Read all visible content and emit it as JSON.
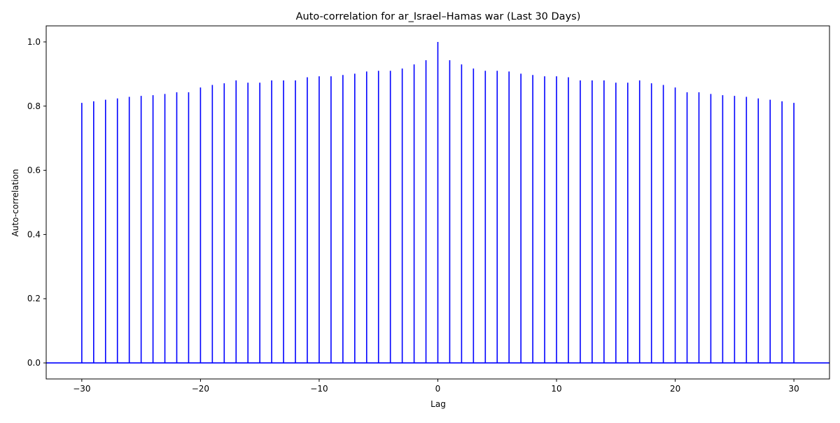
{
  "chart_data": {
    "type": "stem",
    "title": "Auto-correlation for ar_Israel–Hamas war (Last 30 Days)",
    "xlabel": "Lag",
    "ylabel": "Auto-correlation",
    "xlim": [
      -33,
      33
    ],
    "ylim": [
      -0.05,
      1.05
    ],
    "xticks": [
      -30,
      -20,
      -10,
      0,
      10,
      20,
      30
    ],
    "yticks": [
      0.0,
      0.2,
      0.4,
      0.6,
      0.8,
      1.0
    ],
    "xtick_labels": [
      "−30",
      "−20",
      "−10",
      "0",
      "10",
      "20",
      "30"
    ],
    "ytick_labels": [
      "0.0",
      "0.2",
      "0.4",
      "0.6",
      "0.8",
      "1.0"
    ],
    "grid": false,
    "line_color": "#0000ff",
    "lags": [
      -30,
      -29,
      -28,
      -27,
      -26,
      -25,
      -24,
      -23,
      -22,
      -21,
      -20,
      -19,
      -18,
      -17,
      -16,
      -15,
      -14,
      -13,
      -12,
      -11,
      -10,
      -9,
      -8,
      -7,
      -6,
      -5,
      -4,
      -3,
      -2,
      -1,
      0,
      1,
      2,
      3,
      4,
      5,
      6,
      7,
      8,
      9,
      10,
      11,
      12,
      13,
      14,
      15,
      16,
      17,
      18,
      19,
      20,
      21,
      22,
      23,
      24,
      25,
      26,
      27,
      28,
      29,
      30
    ],
    "values": [
      0.81,
      0.815,
      0.82,
      0.824,
      0.829,
      0.832,
      0.834,
      0.838,
      0.843,
      0.843,
      0.858,
      0.866,
      0.871,
      0.88,
      0.873,
      0.873,
      0.88,
      0.88,
      0.88,
      0.89,
      0.893,
      0.893,
      0.897,
      0.901,
      0.908,
      0.91,
      0.91,
      0.917,
      0.93,
      0.943,
      1.0,
      0.943,
      0.93,
      0.917,
      0.91,
      0.91,
      0.908,
      0.901,
      0.897,
      0.893,
      0.893,
      0.89,
      0.88,
      0.88,
      0.88,
      0.873,
      0.873,
      0.88,
      0.871,
      0.866,
      0.858,
      0.843,
      0.843,
      0.838,
      0.834,
      0.832,
      0.829,
      0.824,
      0.82,
      0.815,
      0.81
    ]
  }
}
